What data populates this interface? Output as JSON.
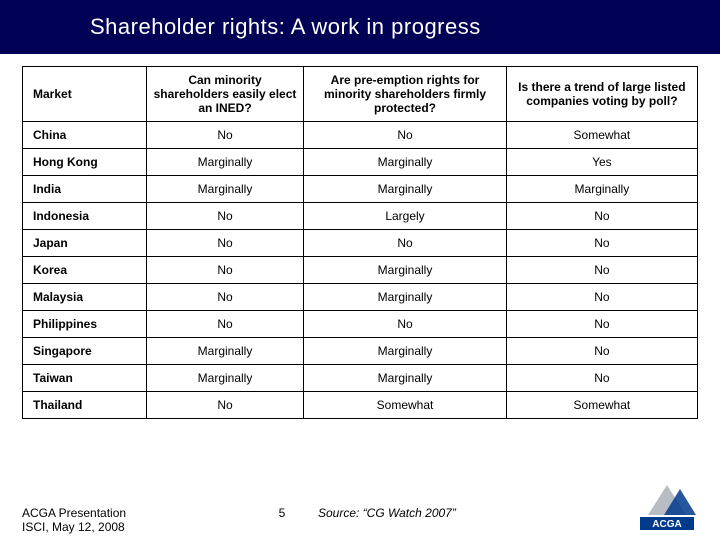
{
  "title": "Shareholder rights: A work in progress",
  "table": {
    "headers": {
      "market": "Market",
      "q1": "Can minority shareholders easily elect an INED?",
      "q2": "Are pre-emption rights for minority shareholders firmly protected?",
      "q3": "Is there a trend of large listed companies voting by poll?"
    },
    "rows": [
      {
        "market": "China",
        "q1": "No",
        "q2": "No",
        "q3": "Somewhat"
      },
      {
        "market": "Hong Kong",
        "q1": "Marginally",
        "q2": "Marginally",
        "q3": "Yes"
      },
      {
        "market": "India",
        "q1": "Marginally",
        "q2": "Marginally",
        "q3": "Marginally"
      },
      {
        "market": "Indonesia",
        "q1": "No",
        "q2": "Largely",
        "q3": "No"
      },
      {
        "market": "Japan",
        "q1": "No",
        "q2": "No",
        "q3": "No"
      },
      {
        "market": "Korea",
        "q1": "No",
        "q2": "Marginally",
        "q3": "No"
      },
      {
        "market": "Malaysia",
        "q1": "No",
        "q2": "Marginally",
        "q3": "No"
      },
      {
        "market": "Philippines",
        "q1": "No",
        "q2": "No",
        "q3": "No"
      },
      {
        "market": "Singapore",
        "q1": "Marginally",
        "q2": "Marginally",
        "q3": "No"
      },
      {
        "market": "Taiwan",
        "q1": "Marginally",
        "q2": "Marginally",
        "q3": "No"
      },
      {
        "market": "Thailand",
        "q1": "No",
        "q2": "Somewhat",
        "q3": "Somewhat"
      }
    ]
  },
  "footer": {
    "left_line1": "ACGA Presentation",
    "left_line2": "ISCI, May 12, 2008",
    "page": "5",
    "source": "Source: “CG Watch 2007”",
    "logo_text": "ACGA"
  },
  "colors": {
    "title_bg": "#000055",
    "logo_blue": "#003a8c",
    "logo_gray": "#b8bdc4"
  }
}
